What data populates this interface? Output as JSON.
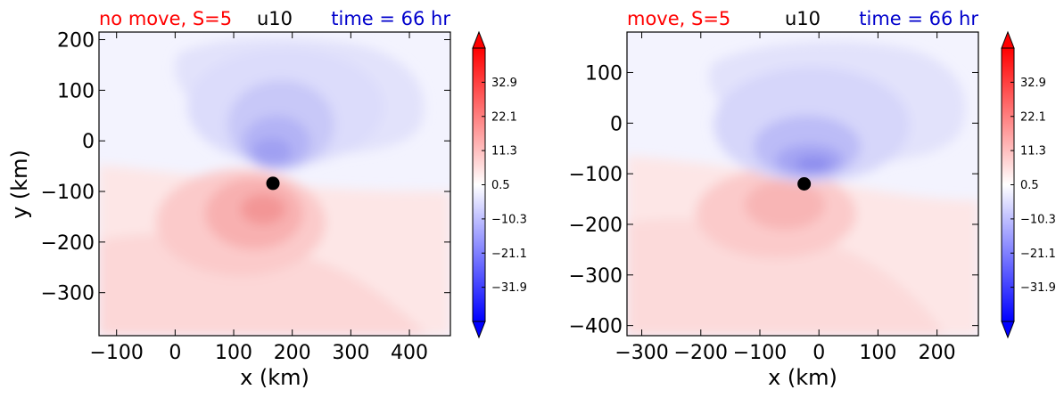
{
  "chart_data": [
    {
      "type": "heatmap",
      "title_left": "no move, S=5",
      "title_center": "u10",
      "title_right": "time = 66 hr",
      "title_colors": {
        "left": "#ff0000",
        "center": "#000000",
        "right": "#0000cc"
      },
      "xlabel": "x (km)",
      "ylabel": "y (km)",
      "xlim": [
        -130,
        470
      ],
      "ylim": [
        -385,
        215
      ],
      "xticks": [
        -100,
        0,
        100,
        200,
        300,
        400
      ],
      "xtick_labels": [
        "−100",
        "0",
        "100",
        "200",
        "300",
        "400"
      ],
      "yticks": [
        200,
        100,
        0,
        -100,
        -200,
        -300
      ],
      "ytick_labels": [
        "200",
        "100",
        "0",
        "−100",
        "−200",
        "−300"
      ],
      "center_marker": {
        "x": 167,
        "y": -84
      },
      "colorbar": {
        "ticks": [
          32.9,
          22.1,
          11.3,
          0.5,
          -10.3,
          -21.1,
          -31.9
        ],
        "tick_labels": [
          "32.9",
          "22.1",
          "11.3",
          "0.5",
          "−10.3",
          "−21.1",
          "−31.9"
        ],
        "range": [
          -42.7,
          43.7
        ]
      }
    },
    {
      "type": "heatmap",
      "title_left": "move, S=5",
      "title_center": "u10",
      "title_right": "time = 66 hr",
      "title_colors": {
        "left": "#ff0000",
        "center": "#000000",
        "right": "#0000cc"
      },
      "xlabel": "x (km)",
      "ylabel": "",
      "xlim": [
        -325,
        270
      ],
      "ylim": [
        -420,
        180
      ],
      "xticks": [
        -300,
        -200,
        -100,
        0,
        100,
        200
      ],
      "xtick_labels": [
        "−300",
        "−200",
        "−100",
        "0",
        "100",
        "200"
      ],
      "yticks": [
        100,
        0,
        -100,
        -200,
        -300,
        -400
      ],
      "ytick_labels": [
        "100",
        "0",
        "−100",
        "−200",
        "−300",
        "−400"
      ],
      "center_marker": {
        "x": -25,
        "y": -120
      },
      "colorbar": {
        "ticks": [
          32.9,
          22.1,
          11.3,
          0.5,
          -10.3,
          -21.1,
          -31.9
        ],
        "tick_labels": [
          "32.9",
          "22.1",
          "11.3",
          "0.5",
          "−10.3",
          "−21.1",
          "−31.9"
        ],
        "range": [
          -42.7,
          43.7
        ]
      }
    }
  ]
}
